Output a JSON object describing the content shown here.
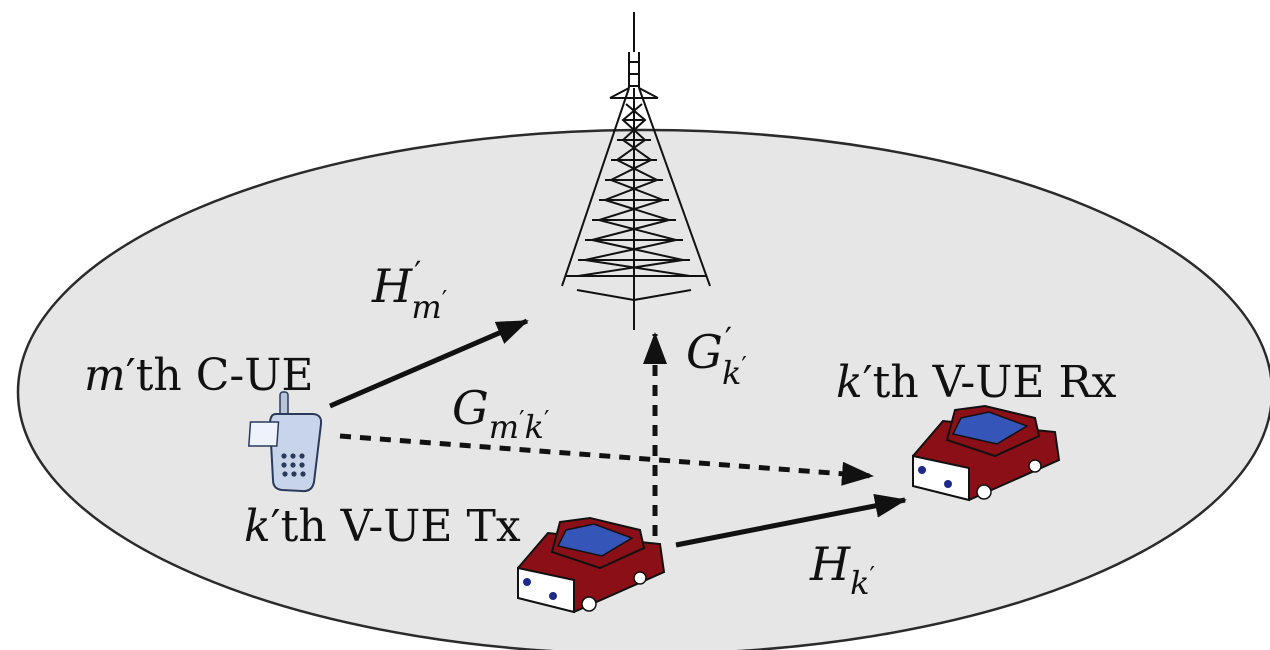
{
  "colors": {
    "cell_fill": "#e6e6e6",
    "cell_stroke": "#2b2b2b",
    "car_body": "#8b0f17",
    "car_roof": "#3555b8",
    "car_side": "#ffffff",
    "link": "#111111"
  },
  "icons": {
    "base_station": "cell-tower-icon",
    "cue_device": "mobile-phone-icon",
    "vue_tx": "car-icon",
    "vue_rx": "car-icon"
  },
  "labels": {
    "cue": {
      "sym": "m",
      "prime": "′",
      "text": "th C-UE"
    },
    "vue_tx": {
      "sym": "k",
      "prime": "′",
      "text": "th V-UE Tx"
    },
    "vue_rx": {
      "sym": "k",
      "prime": "′",
      "text": "th V-UE Rx"
    }
  },
  "links": {
    "h_m_prime": {
      "main": "H",
      "sup": "′",
      "sub": "m",
      "sub_prime": "′"
    },
    "g_k_prime": {
      "main": "G",
      "sup": "′",
      "sub": "k",
      "sub_prime": "′"
    },
    "g_mk": {
      "main": "G",
      "sub": "m",
      "sub_prime": "′",
      "sub2": "k",
      "sub2_prime": "′"
    },
    "h_k": {
      "main": "H",
      "sub": "k",
      "sub_prime": "′"
    }
  }
}
